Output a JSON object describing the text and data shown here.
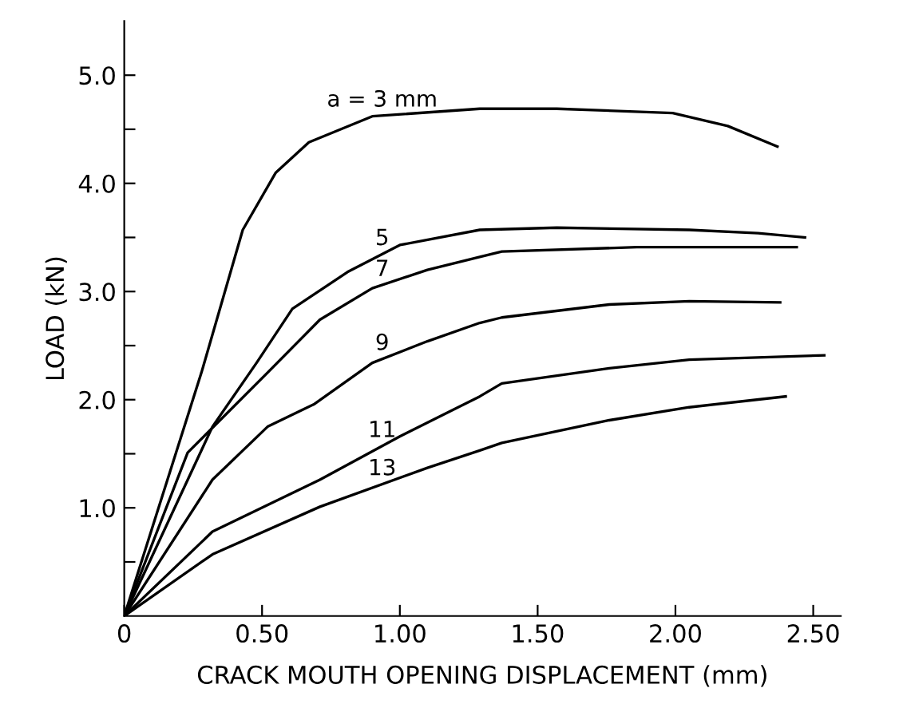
{
  "chart_data": {
    "type": "line",
    "xlabel": "CRACK MOUTH OPENING DISPLACEMENT (mm)",
    "ylabel": "LOAD (kN)",
    "xlim": [
      0,
      2.6
    ],
    "ylim": [
      0,
      5.5
    ],
    "xticks": [
      0,
      {
        "value": 0.5,
        "label": "0.50"
      },
      {
        "value": 1.0,
        "label": "1.00"
      },
      {
        "value": 1.5,
        "label": "1.50"
      },
      {
        "value": 2.0,
        "label": "2.00"
      },
      {
        "value": 2.5,
        "label": "2.50"
      }
    ],
    "yticks": [
      {
        "value": 0.5,
        "label": null
      },
      {
        "value": 1.0,
        "label": "1.0"
      },
      {
        "value": 1.5,
        "label": null
      },
      {
        "value": 2.0,
        "label": "2.0"
      },
      {
        "value": 2.5,
        "label": null
      },
      {
        "value": 3.0,
        "label": "3.0"
      },
      {
        "value": 3.5,
        "label": null
      },
      {
        "value": 4.0,
        "label": "4.0"
      },
      {
        "value": 4.5,
        "label": null
      },
      {
        "value": 5.0,
        "label": "5.0"
      }
    ],
    "grid": false,
    "legend": false,
    "marker": "none",
    "line_style": "solid",
    "series": [
      {
        "name": "a = 3 mm",
        "color": "#000000",
        "x": [
          0,
          0.28,
          0.43,
          0.55,
          0.67,
          0.9,
          1.29,
          1.57,
          1.99,
          2.19,
          2.37
        ],
        "values": [
          0,
          2.25,
          3.57,
          4.1,
          4.38,
          4.62,
          4.69,
          4.69,
          4.65,
          4.53,
          4.34
        ]
      },
      {
        "name": "5",
        "color": "#000000",
        "x": [
          0,
          0.32,
          0.48,
          0.61,
          0.81,
          1.0,
          1.29,
          1.57,
          2.05,
          2.3,
          2.47
        ],
        "values": [
          0,
          1.75,
          2.34,
          2.84,
          3.18,
          3.43,
          3.57,
          3.59,
          3.57,
          3.54,
          3.5
        ]
      },
      {
        "name": "7",
        "color": "#000000",
        "x": [
          0,
          0.23,
          0.52,
          0.71,
          0.9,
          1.1,
          1.29,
          1.37,
          1.86,
          2.44
        ],
        "values": [
          0,
          1.51,
          2.25,
          2.74,
          3.03,
          3.2,
          3.32,
          3.37,
          3.41,
          3.41
        ]
      },
      {
        "name": "9",
        "color": "#000000",
        "x": [
          0,
          0.32,
          0.52,
          0.69,
          0.9,
          1.1,
          1.29,
          1.37,
          1.76,
          2.05,
          2.38
        ],
        "values": [
          0,
          1.26,
          1.75,
          1.96,
          2.34,
          2.54,
          2.71,
          2.76,
          2.88,
          2.91,
          2.9
        ]
      },
      {
        "name": "11",
        "color": "#000000",
        "x": [
          0,
          0.32,
          0.71,
          1.0,
          1.29,
          1.37,
          1.76,
          2.05,
          2.54
        ],
        "values": [
          0,
          0.78,
          1.26,
          1.66,
          2.03,
          2.15,
          2.29,
          2.37,
          2.41
        ]
      },
      {
        "name": "13",
        "color": "#000000",
        "x": [
          0,
          0.32,
          0.71,
          1.1,
          1.29,
          1.37,
          1.76,
          2.05,
          2.4
        ],
        "values": [
          0,
          0.57,
          1.01,
          1.37,
          1.53,
          1.6,
          1.81,
          1.93,
          2.03
        ]
      }
    ]
  }
}
